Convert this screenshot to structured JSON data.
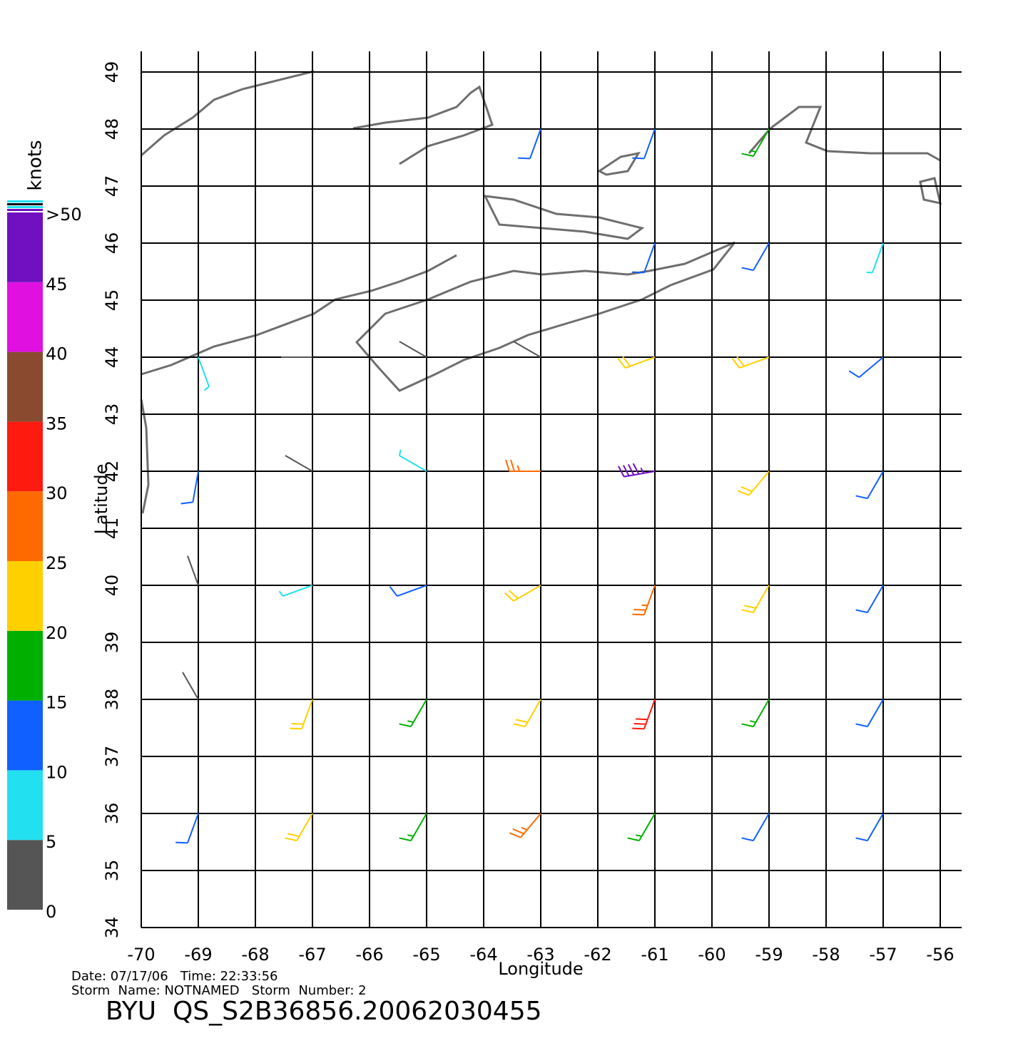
{
  "map": {
    "type": "wind-barbs",
    "colorbar_title": "knots",
    "ylabel": "Latitude",
    "xlabel": "Longitude",
    "xlim": [
      -70,
      -56
    ],
    "ylim": [
      34,
      49
    ],
    "xticks": [
      -70,
      -69,
      -68,
      -67,
      -66,
      -65,
      -64,
      -63,
      -62,
      -61,
      -60,
      -59,
      -58,
      -57,
      -56
    ],
    "yticks": [
      34,
      35,
      36,
      37,
      38,
      39,
      40,
      41,
      42,
      43,
      44,
      45,
      46,
      47,
      48,
      49
    ],
    "grid": true,
    "colorbar": {
      "lim": [
        0,
        50
      ],
      "ticks": [
        0,
        5,
        10,
        15,
        20,
        25,
        30,
        35,
        40,
        45,
        {
          "value": 50,
          "label": ">50"
        }
      ],
      "colors": [
        "#555555",
        "#22e0f0",
        "#1060ff",
        "#00b000",
        "#ffd000",
        "#ff6a00",
        "#ff1a10",
        "#8a4a30",
        "#e010e0",
        "#7010c0"
      ]
    },
    "wind": {
      "lon": [
        -69,
        -67,
        -65,
        -63,
        -61,
        -59,
        -57
      ],
      "lat": [
        48,
        46,
        44,
        42,
        40,
        38,
        36
      ],
      "speed": [
        [
          null,
          null,
          null,
          10,
          12,
          17,
          null
        ],
        [
          null,
          null,
          null,
          null,
          12,
          12,
          8
        ],
        [
          7,
          3,
          3,
          3,
          20,
          20,
          12
        ],
        [
          12,
          3,
          8,
          28,
          45,
          22,
          12
        ],
        [
          4,
          7,
          10,
          22,
          28,
          22,
          14
        ],
        [
          4,
          22,
          18,
          22,
          30,
          18,
          12
        ],
        [
          14,
          22,
          18,
          26,
          18,
          13,
          10
        ]
      ],
      "direction": [
        [
          null,
          null,
          null,
          200,
          200,
          210,
          null
        ],
        [
          null,
          null,
          null,
          null,
          200,
          210,
          200
        ],
        [
          160,
          270,
          300,
          300,
          250,
          250,
          230
        ],
        [
          190,
          300,
          300,
          270,
          260,
          220,
          210
        ],
        [
          340,
          250,
          250,
          240,
          200,
          210,
          210
        ],
        [
          330,
          200,
          210,
          210,
          200,
          210,
          210
        ],
        [
          200,
          210,
          210,
          220,
          210,
          210,
          210
        ]
      ]
    },
    "footer": {
      "date_line": "Date: 07/17/06   Time: 22:33:56",
      "storm_line": "Storm  Name: NOTNAMED   Storm  Number: 2",
      "file_id": "BYU  QS_S2B36856.20062030455"
    }
  }
}
